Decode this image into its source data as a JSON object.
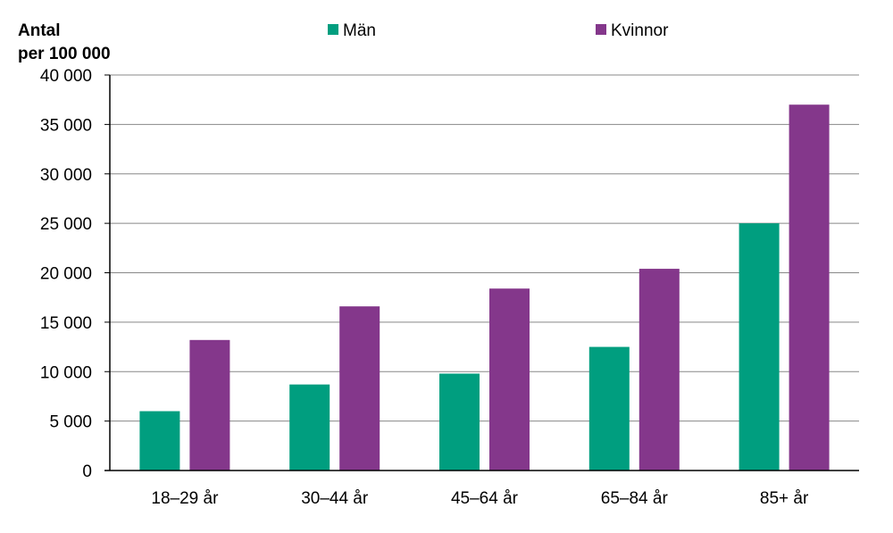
{
  "chart_data": {
    "type": "bar",
    "title": "",
    "ylabel_lines": [
      "Antal",
      "per 100 000"
    ],
    "xlabel": "",
    "categories": [
      "18–29 år",
      "30–44 år",
      "45–64 år",
      "65–84 år",
      "85+ år"
    ],
    "series": [
      {
        "name": "Män",
        "color": "#009E7F",
        "values": [
          6000,
          8700,
          9800,
          12500,
          25000
        ]
      },
      {
        "name": "Kvinnor",
        "color": "#84378B",
        "values": [
          13200,
          16600,
          18400,
          20400,
          37000
        ]
      }
    ],
    "ylim": [
      0,
      40000
    ],
    "yticks": [
      0,
      5000,
      10000,
      15000,
      20000,
      25000,
      30000,
      35000,
      40000
    ],
    "ytick_labels": [
      "0",
      "5 000",
      "10 000",
      "15 000",
      "20 000",
      "25 000",
      "30 000",
      "35 000",
      "40 000"
    ],
    "grid": true,
    "legend_position": "top"
  }
}
